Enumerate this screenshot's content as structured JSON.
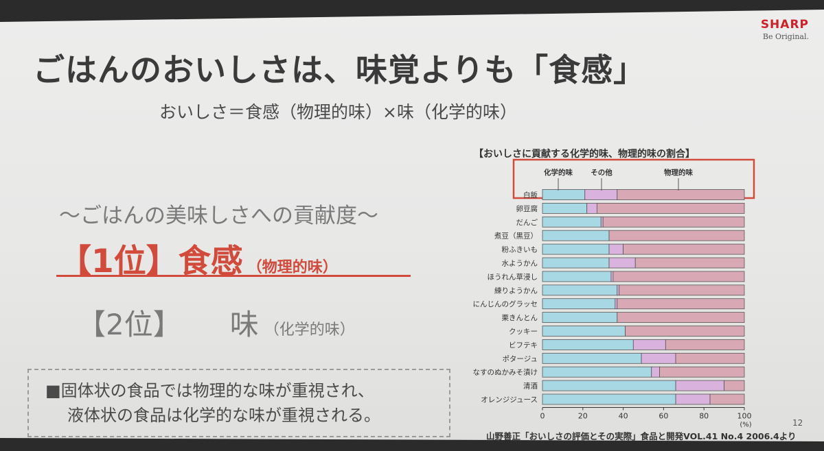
{
  "brand": {
    "name": "SHARP",
    "tagline": "Be Original."
  },
  "title": "ごはんのおいしさは、味覚よりも「食感」",
  "formula": "おいしさ＝食感（物理的味）×味（化学的味）",
  "contribution_heading": "〜ごはんの美味しさへの貢献度〜",
  "rank1": {
    "label": "【1位】食感",
    "sub": "（物理的味）"
  },
  "rank2": {
    "label": "【2位】",
    "main": "味",
    "sub": "（化学的味）"
  },
  "note": {
    "line1": "■固体状の食品では物理的な味が重視され、",
    "line2": "液体状の食品は化学的な味が重視される。"
  },
  "source": "山野善正「おいしさの評価とその実際」食品と開発VOL.41 No.4 2006.4より",
  "page_number": "12",
  "colors": {
    "chemical": "#a8d8e4",
    "other": "#d9b2dd",
    "physical": "#d8a8b4",
    "highlight": "#d24a3c"
  },
  "chart_data": {
    "type": "bar",
    "orientation": "horizontal",
    "stacked": true,
    "title": "【おいしさに貢献する化学的味、物理的味の割合】",
    "categories": [
      "白飯",
      "卵豆腐",
      "だんご",
      "煮豆（黒豆）",
      "粉ふきいも",
      "水ようかん",
      "ほうれん草浸し",
      "練りようかん",
      "にんじんのグラッセ",
      "栗きんとん",
      "クッキー",
      "ビフテキ",
      "ポタージュ",
      "なすのぬかみそ漬け",
      "清酒",
      "オレンジジュース"
    ],
    "series": [
      {
        "name": "化学的味",
        "values": [
          21,
          22,
          29,
          33,
          33,
          33,
          34,
          37,
          36,
          37,
          41,
          45,
          49,
          54,
          66,
          66
        ]
      },
      {
        "name": "その他",
        "values": [
          16,
          5,
          1,
          0,
          7,
          13,
          1,
          1,
          1,
          0,
          0,
          16,
          17,
          4,
          24,
          17
        ]
      },
      {
        "name": "物理的味",
        "values": [
          63,
          73,
          70,
          67,
          60,
          54,
          65,
          62,
          63,
          63,
          59,
          39,
          34,
          42,
          10,
          17
        ]
      }
    ],
    "xlabel": "(%)",
    "xlim": [
      0,
      100
    ],
    "xticks": [
      "0",
      "20",
      "40",
      "60",
      "80",
      "100"
    ],
    "legend_note": "白飯 row highlighted with series labels"
  }
}
